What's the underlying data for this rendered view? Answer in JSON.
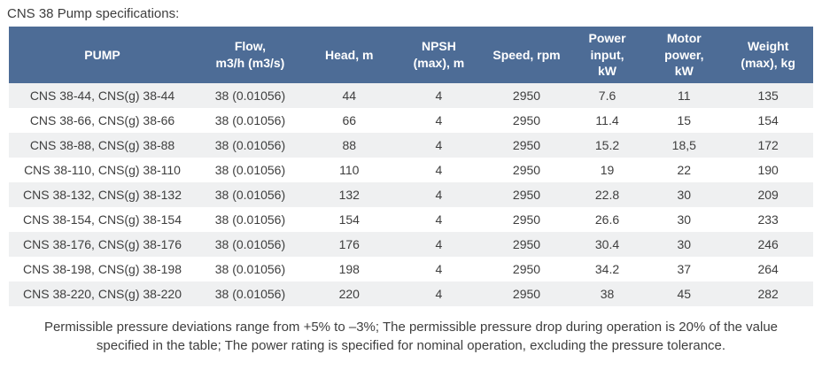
{
  "page": {
    "title": "CNS 38 Pump specifications:",
    "footnote": "Permissible pressure deviations range from +5% to –3%; The permissible pressure drop during operation is 20% of the value\nspecified in the table; The power rating is specified for nominal operation, excluding the pressure tolerance."
  },
  "colors": {
    "page_bg": "#ffffff",
    "header_bg": "#4d6c96",
    "header_text": "#ffffff",
    "row_stripe": "#eff0f1",
    "row_white": "#ffffff",
    "body_text": "#3e3e3e"
  },
  "table": {
    "columns": [
      {
        "id": "pump",
        "label": "PUMP"
      },
      {
        "id": "flow",
        "label": "Flow,\nm3/h (m3/s)"
      },
      {
        "id": "head",
        "label": "Head, m"
      },
      {
        "id": "npsh",
        "label": "NPSH\n(max), m"
      },
      {
        "id": "speed",
        "label": "Speed, rpm"
      },
      {
        "id": "power_input",
        "label": "Power\ninput,\nkW"
      },
      {
        "id": "motor_power",
        "label": "Motor\npower,\nkW"
      },
      {
        "id": "weight",
        "label": "Weight\n(max), kg"
      }
    ],
    "rows": [
      [
        "CNS 38-44, CNS(g) 38-44",
        "38 (0.01056)",
        "44",
        "4",
        "2950",
        "7.6",
        "11",
        "135"
      ],
      [
        "CNS 38-66, CNS(g) 38-66",
        "38 (0.01056)",
        "66",
        "4",
        "2950",
        "11.4",
        "15",
        "154"
      ],
      [
        "CNS 38-88, CNS(g) 38-88",
        "38 (0.01056)",
        "88",
        "4",
        "2950",
        "15.2",
        "18,5",
        "172"
      ],
      [
        "CNS 38-110, CNS(g) 38-110",
        "38 (0.01056)",
        "110",
        "4",
        "2950",
        "19",
        "22",
        "190"
      ],
      [
        "CNS 38-132, CNS(g) 38-132",
        "38 (0.01056)",
        "132",
        "4",
        "2950",
        "22.8",
        "30",
        "209"
      ],
      [
        "CNS 38-154, CNS(g) 38-154",
        "38 (0.01056)",
        "154",
        "4",
        "2950",
        "26.6",
        "30",
        "233"
      ],
      [
        "CNS 38-176, CNS(g) 38-176",
        "38 (0.01056)",
        "176",
        "4",
        "2950",
        "30.4",
        "30",
        "246"
      ],
      [
        "CNS 38-198, CNS(g) 38-198",
        "38 (0.01056)",
        "198",
        "4",
        "2950",
        "34.2",
        "37",
        "264"
      ],
      [
        "CNS 38-220, CNS(g) 38-220",
        "38 (0.01056)",
        "220",
        "4",
        "2950",
        "38",
        "45",
        "282"
      ]
    ]
  }
}
